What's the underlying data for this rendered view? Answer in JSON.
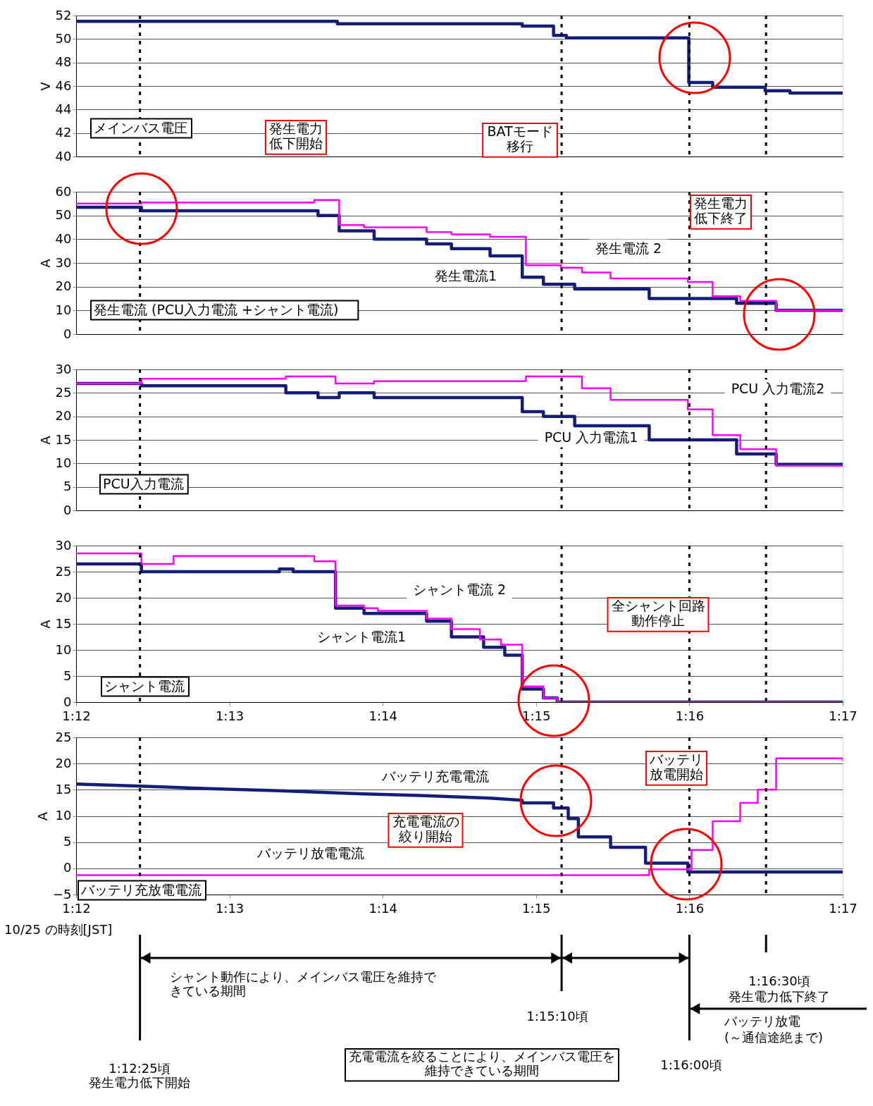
{
  "chart_data": [
    {
      "type": "step",
      "title": "メインバス電圧",
      "ylabel": "V",
      "xlim": [
        1.2,
        1.283333
      ],
      "xticks": [
        {
          "value": 1.2,
          "label": "1:12"
        },
        {
          "value": 1.216667,
          "label": "1:13"
        },
        {
          "value": 1.233333,
          "label": "1:14"
        },
        {
          "value": 1.25,
          "label": "1:15"
        },
        {
          "value": 1.266667,
          "label": "1:16"
        },
        {
          "value": 1.283333,
          "label": "1:17"
        }
      ],
      "ylim": [
        40,
        52
      ],
      "yticks": [
        40,
        42,
        44,
        46,
        48,
        50,
        52
      ],
      "grid": "y",
      "tick_labels": "y",
      "series": [
        {
          "color": "#141e78",
          "x": [
            1.2,
            1.2284,
            1.2485,
            1.2519,
            1.2533,
            1.2666,
            1.2692,
            1.2749,
            1.2776,
            1.283333
          ],
          "values": [
            51.5,
            51.3,
            51.1,
            50.3,
            50.1,
            46.3,
            45.9,
            45.6,
            45.4,
            45.4
          ]
        }
      ],
      "ref_lines": [
        {
          "axis": "x",
          "value": 1.206944,
          "line_style": "dashed"
        },
        {
          "axis": "x",
          "value": 1.252778,
          "line_style": "dashed"
        },
        {
          "axis": "x",
          "value": 1.266667,
          "line_style": "dashed"
        },
        {
          "axis": "x",
          "value": 1.275,
          "line_style": "dashed"
        }
      ],
      "annotations": [
        "BATモード移行"
      ]
    },
    {
      "type": "step",
      "title": "発生電流 (PCU入力電流 +シャント電流)",
      "ylabel": "A",
      "xlim": [
        1.2,
        1.283333
      ],
      "xticks": [
        {
          "value": 1.2,
          "label": "1:12"
        },
        {
          "value": 1.216667,
          "label": "1:13"
        },
        {
          "value": 1.233333,
          "label": "1:14"
        },
        {
          "value": 1.25,
          "label": "1:15"
        },
        {
          "value": 1.266667,
          "label": "1:16"
        },
        {
          "value": 1.283333,
          "label": "1:17"
        }
      ],
      "ylim": [
        0,
        60
      ],
      "yticks": [
        0,
        10,
        20,
        30,
        40,
        50,
        60
      ],
      "grid": "y",
      "tick_labels": "y",
      "series": [
        {
          "name": "発生電流1",
          "color": "#141e78",
          "x": [
            1.2,
            1.2071,
            1.2263,
            1.2286,
            1.2324,
            1.2381,
            1.2408,
            1.245,
            1.2485,
            1.2508,
            1.2542,
            1.2623,
            1.2718,
            1.2761,
            1.283333
          ],
          "values": [
            53.5,
            52,
            50,
            43.5,
            40,
            38,
            36,
            33,
            24,
            21,
            19,
            15,
            13,
            10,
            10
          ]
        },
        {
          "name": "発生電流 2",
          "color": "#ff00ff",
          "x": [
            1.2,
            1.2071,
            1.2259,
            1.2286,
            1.2313,
            1.2381,
            1.2408,
            1.245,
            1.2489,
            1.2527,
            1.255,
            1.2581,
            1.2665,
            1.2692,
            1.2722,
            1.2761,
            1.283333
          ],
          "values": [
            55,
            55.5,
            56.5,
            46,
            45,
            43,
            42,
            41,
            29,
            28,
            26,
            23.5,
            22,
            16,
            14,
            10,
            10
          ]
        }
      ],
      "ref_lines": [
        {
          "axis": "x",
          "value": 1.206944,
          "line_style": "dashed"
        },
        {
          "axis": "x",
          "value": 1.252778,
          "line_style": "dashed"
        },
        {
          "axis": "x",
          "value": 1.266667,
          "line_style": "dashed"
        },
        {
          "axis": "x",
          "value": 1.275,
          "line_style": "dashed"
        }
      ],
      "annotations": [
        "発生電力低下開始",
        "発生電力低下終了"
      ]
    },
    {
      "type": "step",
      "title": "PCU入力電流",
      "ylabel": "A",
      "xlim": [
        1.2,
        1.283333
      ],
      "xticks": [
        {
          "value": 1.2,
          "label": "1:12"
        },
        {
          "value": 1.216667,
          "label": "1:13"
        },
        {
          "value": 1.233333,
          "label": "1:14"
        },
        {
          "value": 1.25,
          "label": "1:15"
        },
        {
          "value": 1.266667,
          "label": "1:16"
        },
        {
          "value": 1.283333,
          "label": "1:17"
        }
      ],
      "ylim": [
        0,
        30
      ],
      "yticks": [
        0,
        5,
        10,
        15,
        20,
        25,
        30
      ],
      "grid": "y",
      "tick_labels": "y",
      "series": [
        {
          "name": "PCU 入力電流1",
          "color": "#141e78",
          "x": [
            1.2,
            1.2071,
            1.2228,
            1.2263,
            1.2286,
            1.2324,
            1.2485,
            1.2508,
            1.2542,
            1.2623,
            1.2718,
            1.2761,
            1.283333
          ],
          "values": [
            27,
            26.5,
            25,
            24,
            25,
            24,
            21,
            20,
            18,
            15,
            12,
            9.8,
            9.8
          ]
        },
        {
          "name": "PCU 入力電流2",
          "color": "#ff00ff",
          "x": [
            1.2,
            1.2071,
            1.2228,
            1.2282,
            1.2324,
            1.2489,
            1.255,
            1.2581,
            1.2665,
            1.2692,
            1.2722,
            1.2761,
            1.283333
          ],
          "values": [
            27,
            28,
            28.5,
            27,
            27.5,
            28.5,
            26,
            23.5,
            21.5,
            16,
            13,
            9.5,
            9.5
          ]
        }
      ],
      "ref_lines": [
        {
          "axis": "x",
          "value": 1.206944,
          "line_style": "dashed"
        },
        {
          "axis": "x",
          "value": 1.252778,
          "line_style": "dashed"
        },
        {
          "axis": "x",
          "value": 1.266667,
          "line_style": "dashed"
        },
        {
          "axis": "x",
          "value": 1.275,
          "line_style": "dashed"
        }
      ]
    },
    {
      "type": "step",
      "title": "シャント電流",
      "ylabel": "A",
      "xlim": [
        1.2,
        1.283333
      ],
      "xticks": [
        {
          "value": 1.2,
          "label": "1:12"
        },
        {
          "value": 1.216667,
          "label": "1:13"
        },
        {
          "value": 1.233333,
          "label": "1:14"
        },
        {
          "value": 1.25,
          "label": "1:15"
        },
        {
          "value": 1.266667,
          "label": "1:16"
        },
        {
          "value": 1.283333,
          "label": "1:17"
        }
      ],
      "ylim": [
        0,
        30
      ],
      "yticks": [
        0,
        5,
        10,
        15,
        20,
        25,
        30
      ],
      "grid": "y",
      "series": [
        {
          "name": "シャント電流1",
          "color": "#141e78",
          "x": [
            1.2,
            1.2071,
            1.2221,
            1.2236,
            1.2282,
            1.2313,
            1.2381,
            1.2408,
            1.2443,
            1.2466,
            1.2485,
            1.2508,
            1.2523,
            1.283333
          ],
          "values": [
            26.5,
            25,
            25.5,
            25,
            18,
            17,
            15.5,
            12.5,
            10.5,
            9,
            2.5,
            0.8,
            0,
            0
          ]
        },
        {
          "name": "シャント電流 2",
          "color": "#ff00ff",
          "x": [
            1.2,
            1.2071,
            1.2106,
            1.2259,
            1.2282,
            1.2313,
            1.2328,
            1.2381,
            1.2408,
            1.2439,
            1.2462,
            1.2485,
            1.2508,
            1.2523,
            1.283333
          ],
          "values": [
            28.5,
            26.5,
            28,
            27,
            18.5,
            18,
            17.5,
            16,
            14,
            12,
            11,
            3,
            0.8,
            0,
            0
          ]
        }
      ],
      "ref_lines": [
        {
          "axis": "x",
          "value": 1.206944,
          "line_style": "dashed"
        },
        {
          "axis": "x",
          "value": 1.252778,
          "line_style": "dashed"
        },
        {
          "axis": "x",
          "value": 1.266667,
          "line_style": "dashed"
        },
        {
          "axis": "x",
          "value": 1.275,
          "line_style": "dashed"
        }
      ],
      "annotations": [
        "全シャント回路動作停止"
      ]
    },
    {
      "type": "step",
      "title": "バッテリ充放電電流",
      "ylabel": "A",
      "xlabel": "10/25 の時刻[JST]",
      "xlim": [
        1.2,
        1.283333
      ],
      "xticks": [
        {
          "value": 1.2,
          "label": "1:12"
        },
        {
          "value": 1.216667,
          "label": "1:13"
        },
        {
          "value": 1.233333,
          "label": "1:14"
        },
        {
          "value": 1.25,
          "label": "1:15"
        },
        {
          "value": 1.266667,
          "label": "1:16"
        },
        {
          "value": 1.283333,
          "label": "1:17"
        }
      ],
      "ylim": [
        -5,
        25
      ],
      "yticks": [
        -5,
        0,
        5,
        10,
        15,
        20,
        25
      ],
      "grid": "y",
      "series": [
        {
          "name": "バッテリ充電電流",
          "color": "#141e78",
          "type": "line",
          "x": [
            1.2,
            1.2071,
            1.2144,
            1.2221,
            1.2297,
            1.2374,
            1.245,
            1.2485,
            1.2485,
            1.2519,
            1.2519,
            1.2535,
            1.2535,
            1.2546,
            1.2546,
            1.2581,
            1.2581,
            1.2619,
            1.2619,
            1.2665,
            1.2665,
            1.283333
          ],
          "values": [
            16.1,
            15.7,
            15.2,
            14.8,
            14.3,
            13.9,
            13.4,
            13,
            12.5,
            12.5,
            11.5,
            11.5,
            9.5,
            9.5,
            6,
            6,
            4,
            4,
            1,
            1,
            -0.7,
            -0.7
          ]
        },
        {
          "name": "バッテリ放電電流",
          "color": "#ff00ff",
          "x": [
            1.2,
            1.2623,
            1.2669,
            1.2692,
            1.2722,
            1.2741,
            1.2761,
            1.283333
          ],
          "values": [
            -1.3,
            -0.2,
            3.5,
            9,
            12.5,
            15,
            21,
            20.5
          ]
        }
      ],
      "ref_lines": [
        {
          "axis": "x",
          "value": 1.206944,
          "line_style": "dashed"
        },
        {
          "axis": "x",
          "value": 1.252778,
          "line_style": "dashed"
        },
        {
          "axis": "x",
          "value": 1.266667,
          "line_style": "dashed"
        },
        {
          "axis": "x",
          "value": 1.275,
          "line_style": "dashed"
        }
      ],
      "annotations": [
        "充電電流の絞り開始",
        "バッテリ放電開始",
        "シャント動作により、メインバス電圧を維持できている期間",
        "1:15:10頃",
        "充電電流を絞ることにより、メインバス電圧を維持できている期間",
        "1:16:00頃",
        "1:16:30頃",
        "発生電力低下終了",
        "バッテリ放電",
        "(～通信途絶まで)",
        "1:12:25頃",
        "発生電力低下開始"
      ]
    }
  ]
}
